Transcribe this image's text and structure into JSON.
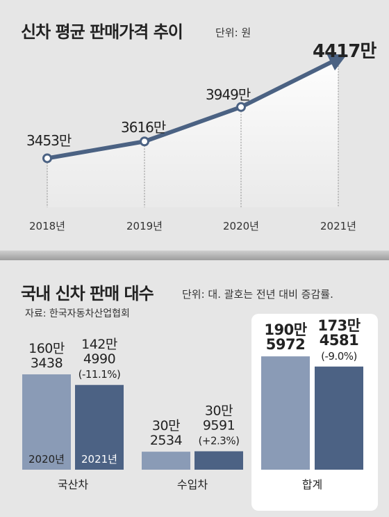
{
  "price_section": {
    "title": "신차 평균 판매가격 추이",
    "unit": "단위: 원"
  },
  "sales_section": {
    "title": "국내 신차 판매 대수",
    "unit": "단위: 대. 괄호는 전년 대비 증감률.",
    "source": "자료: 한국자동차산업협회"
  },
  "colors": {
    "background": "#e6e6e6",
    "line": "#4b6283",
    "bar_2020": "#8a9bb6",
    "bar_2021": "#4c6284",
    "box": "#ffffff"
  },
  "chart_data": [
    {
      "type": "line",
      "title": "신차 평균 판매가격 추이",
      "unit": "원",
      "x": [
        "2018년",
        "2019년",
        "2020년",
        "2021년"
      ],
      "values": [
        3453,
        3616,
        3949,
        4417
      ],
      "value_labels": [
        "3453만",
        "3616만",
        "3949만",
        "4417만"
      ],
      "ylim": [
        3200,
        4500
      ]
    },
    {
      "type": "bar",
      "title": "국내 신차 판매 대수",
      "unit": "대",
      "categories": [
        "국산차",
        "수입차",
        "합계"
      ],
      "series": [
        {
          "name": "2020년",
          "values": [
            1603438,
            302534,
            1905972
          ],
          "label_lines": [
            [
              "160만",
              "3438"
            ],
            [
              "30만",
              "2534"
            ],
            [
              "190만",
              "5972"
            ]
          ]
        },
        {
          "name": "2021년",
          "values": [
            1424990,
            309591,
            1734581
          ],
          "label_lines": [
            [
              "142만",
              "4990",
              "(-11.1%)"
            ],
            [
              "30만",
              "9591",
              "(+2.3%)"
            ],
            [
              "173만",
              "4581",
              "(-9.0%)"
            ]
          ],
          "change_pct": [
            -11.1,
            2.3,
            -9.0
          ]
        }
      ]
    }
  ]
}
